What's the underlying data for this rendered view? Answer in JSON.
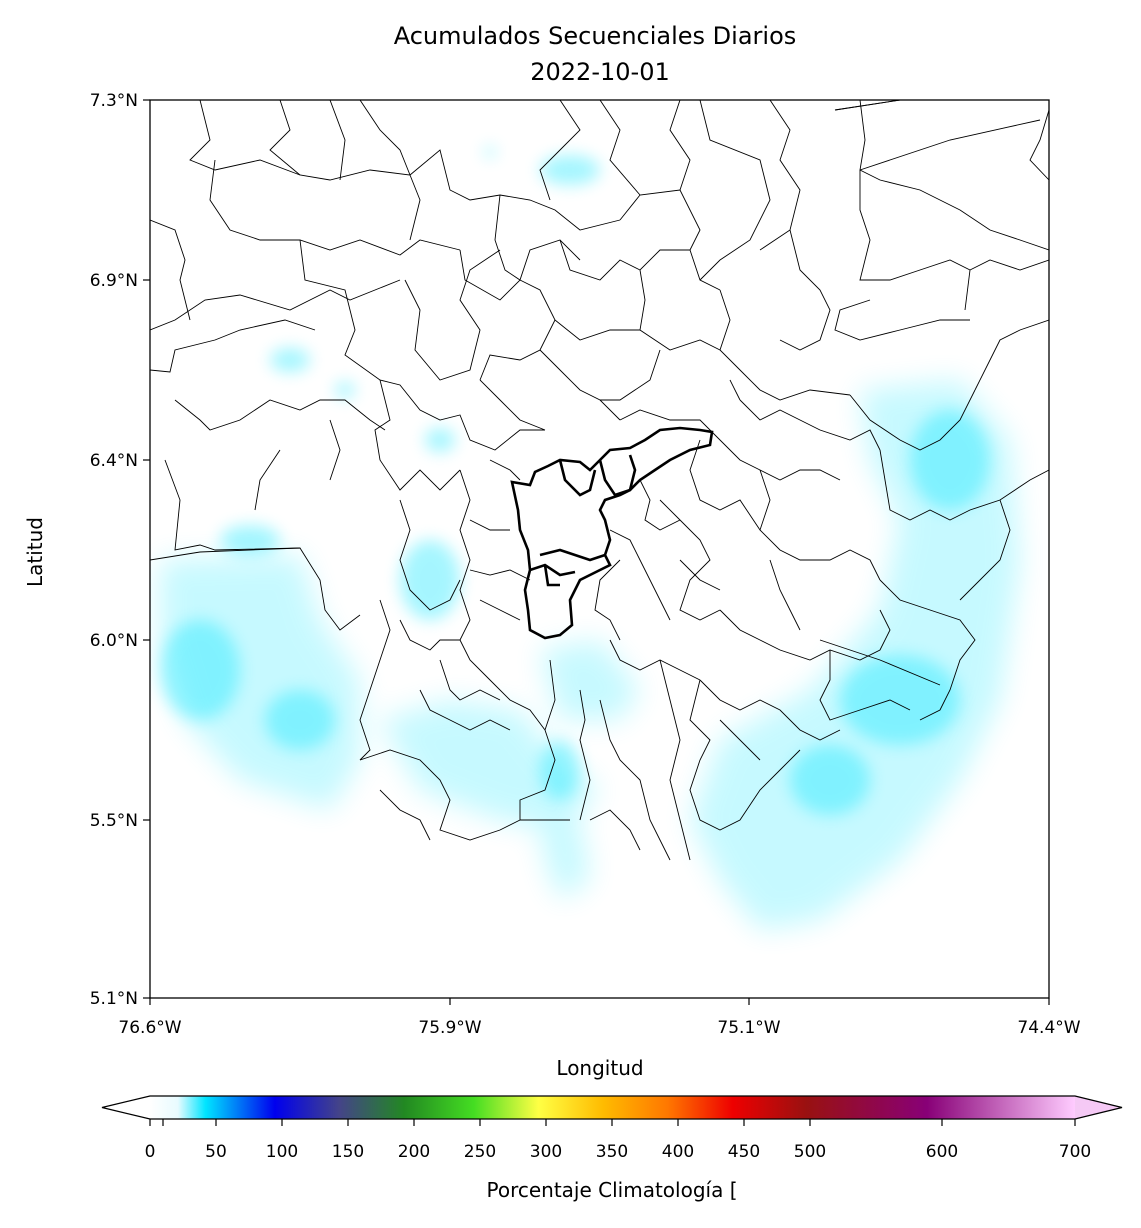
{
  "title": "Acumulados Secuenciales Diarios",
  "subtitle": "2022-10-01",
  "xlabel": "Longitud",
  "ylabel": "Latitud",
  "x_ticks": [
    "76.6°W",
    "75.9°W",
    "75.1°W",
    "74.4°W"
  ],
  "y_ticks": [
    "7.3°N",
    "6.9°N",
    "6.4°N",
    "6.0°N",
    "5.5°N",
    "5.1°N"
  ],
  "colorbar": {
    "label": "Porcentaje Climatología [",
    "ticks": [
      "0",
      "50",
      "100",
      "150",
      "200",
      "250",
      "300",
      "350",
      "400",
      "450",
      "500",
      "600",
      "700"
    ],
    "colors": [
      "#ffffff",
      "#00e5ff",
      "#0000ee",
      "#444488",
      "#228822",
      "#44dd22",
      "#ffff44",
      "#ffbb00",
      "#ff7700",
      "#ee0000",
      "#991111",
      "#880077",
      "#ffccff"
    ]
  },
  "precip_color": "#00e5ff"
}
